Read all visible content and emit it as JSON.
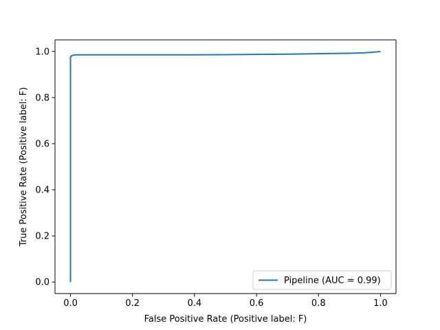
{
  "chart_data": {
    "type": "line",
    "title": "",
    "xlabel": "False Positive Rate (Positive label: F)",
    "ylabel": "True Positive Rate (Positive label: F)",
    "xlim": [
      -0.05,
      1.05
    ],
    "ylim": [
      -0.05,
      1.05
    ],
    "xticks": [
      0.0,
      0.2,
      0.4,
      0.6,
      0.8,
      1.0
    ],
    "yticks": [
      0.0,
      0.2,
      0.4,
      0.6,
      0.8,
      1.0
    ],
    "xtick_labels": [
      "0.0",
      "0.2",
      "0.4",
      "0.6",
      "0.8",
      "1.0"
    ],
    "ytick_labels": [
      "0.0",
      "0.2",
      "0.4",
      "0.6",
      "0.8",
      "1.0"
    ],
    "grid": false,
    "legend_position": "lower-right",
    "series": [
      {
        "name": "Pipeline (AUC = 0.99)",
        "color": "#1f77b4",
        "x": [
          0.0,
          0.0,
          0.0,
          0.0,
          0.002,
          0.005,
          0.01,
          0.02,
          0.05,
          0.1,
          0.2,
          0.3,
          0.4,
          0.5,
          0.6,
          0.7,
          0.8,
          0.85,
          0.9,
          0.95,
          0.97,
          0.99,
          1.0
        ],
        "y": [
          0.0,
          0.5,
          0.9,
          0.975,
          0.98,
          0.982,
          0.984,
          0.985,
          0.985,
          0.985,
          0.985,
          0.985,
          0.985,
          0.986,
          0.987,
          0.988,
          0.99,
          0.991,
          0.992,
          0.994,
          0.996,
          0.998,
          1.0
        ]
      }
    ]
  }
}
